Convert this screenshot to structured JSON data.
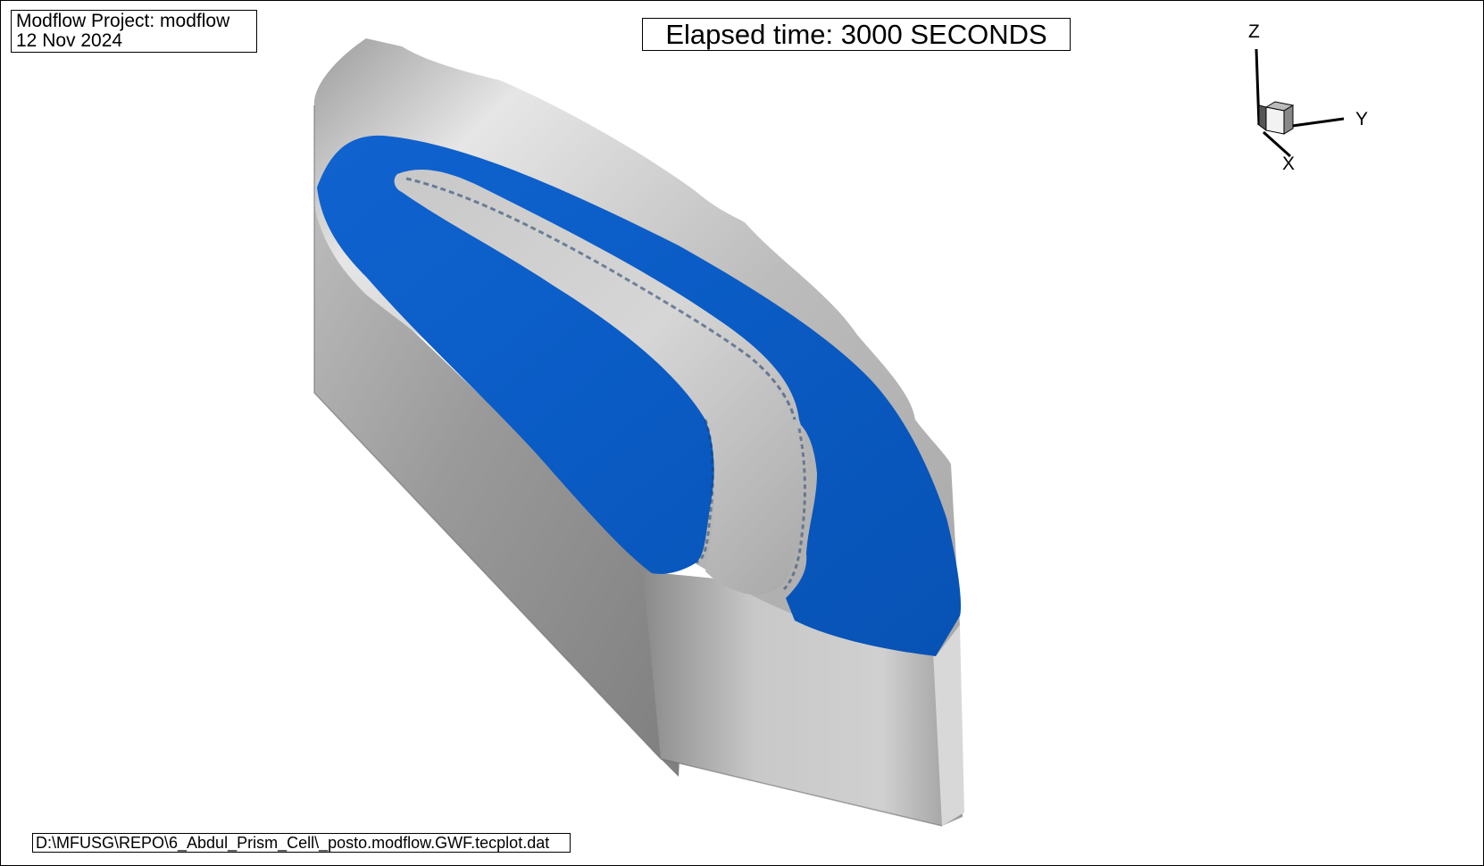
{
  "header": {
    "project_line": "Modflow Project: modflow",
    "date_line": "12 Nov 2024"
  },
  "elapsed_time_label": "Elapsed time: 3000 SECONDS",
  "footer": {
    "file_path": "D:\\MFUSG\\REPO\\6_Abdul_Prism_Cell\\_posto.modflow.GWF.tecplot.dat"
  },
  "axes": {
    "z_label": "Z",
    "y_label": "Y",
    "x_label": "X"
  },
  "colors": {
    "plume_blue": "#0a5bc4",
    "solid_gray": "#b4b4b4",
    "background": "#ffffff"
  }
}
